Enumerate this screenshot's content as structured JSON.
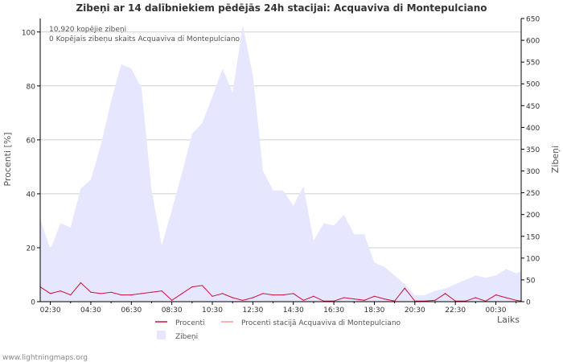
{
  "chart_data": {
    "type": "area",
    "title": "Zibeņi ar 14 dalībniekiem pēdējās 24h stacijai: Acquaviva di Montepulciano",
    "annotations": [
      "10,920 kopējie zibeņi",
      "0 Kopējais zibeņu skaits Acquaviva di Montepulciano"
    ],
    "ylabel_left": "Procenti   [%]",
    "ylabel_right": "Zibeņi",
    "xlabel": "Laiks",
    "y_left_range": [
      0,
      105
    ],
    "y_right_range": [
      0,
      650
    ],
    "y_left_ticks": [
      0,
      20,
      40,
      60,
      80,
      100
    ],
    "y_right_ticks": [
      0,
      50,
      100,
      150,
      200,
      250,
      300,
      350,
      400,
      450,
      500,
      550,
      600,
      650
    ],
    "x_start_hour": 2.0,
    "x_end_hour": 25.75,
    "x_ticks": [
      "02:30",
      "04:30",
      "06:30",
      "08:30",
      "10:30",
      "12:30",
      "14:30",
      "16:30",
      "18:30",
      "20:30",
      "22:30",
      "00:30"
    ],
    "x_tick_hours": [
      2.5,
      4.5,
      6.5,
      8.5,
      10.5,
      12.5,
      14.5,
      16.5,
      18.5,
      20.5,
      22.5,
      24.5
    ],
    "series": [
      {
        "name": "Zibeņi",
        "color": "#e6e6ff",
        "axis": "right",
        "hours": [
          2.0,
          2.5,
          3.0,
          3.5,
          4.0,
          4.5,
          5.0,
          5.5,
          6.0,
          6.5,
          7.0,
          7.5,
          8.0,
          8.5,
          9.0,
          9.5,
          10.0,
          10.5,
          11.0,
          11.5,
          12.0,
          12.5,
          13.0,
          13.5,
          14.0,
          14.5,
          15.0,
          15.5,
          16.0,
          16.5,
          17.0,
          17.5,
          18.0,
          18.5,
          19.0,
          19.5,
          20.0,
          20.5,
          21.0,
          21.5,
          22.0,
          22.5,
          23.0,
          23.5,
          24.0,
          24.5,
          25.0,
          25.5,
          25.75
        ],
        "values": [
          190,
          120,
          180,
          170,
          260,
          280,
          360,
          460,
          545,
          535,
          490,
          255,
          130,
          210,
          295,
          385,
          410,
          470,
          535,
          480,
          635,
          520,
          300,
          255,
          255,
          220,
          265,
          140,
          180,
          175,
          200,
          155,
          155,
          90,
          80,
          60,
          40,
          15,
          15,
          25,
          30,
          40,
          50,
          60,
          55,
          60,
          75,
          65,
          70
        ]
      },
      {
        "name": "Procenti",
        "color": "#d0103a",
        "axis": "left",
        "hours": [
          2.0,
          2.5,
          3.0,
          3.5,
          4.0,
          4.5,
          5.0,
          5.5,
          6.0,
          6.5,
          7.0,
          7.5,
          8.0,
          8.5,
          9.0,
          9.5,
          10.0,
          10.5,
          11.0,
          11.5,
          12.0,
          12.5,
          13.0,
          13.5,
          14.0,
          14.5,
          15.0,
          15.5,
          16.0,
          16.5,
          17.0,
          17.5,
          18.0,
          18.5,
          19.0,
          19.5,
          20.0,
          20.5,
          21.0,
          21.5,
          22.0,
          22.5,
          23.0,
          23.5,
          24.0,
          24.5,
          25.0,
          25.5,
          25.75
        ],
        "values": [
          5.5,
          3.0,
          4.0,
          2.5,
          7.0,
          3.5,
          3.0,
          3.5,
          2.5,
          2.5,
          3.0,
          3.5,
          4.0,
          0.5,
          3.0,
          5.5,
          6.0,
          2.0,
          3.0,
          1.5,
          0.5,
          1.5,
          3.0,
          2.5,
          2.5,
          3.0,
          0.5,
          2.0,
          0.2,
          0.2,
          1.5,
          1.0,
          0.5,
          2.0,
          1.0,
          0.2,
          5.0,
          0.2,
          0.2,
          0.5,
          3.0,
          0.2,
          0.2,
          1.5,
          0.2,
          2.5,
          1.5,
          0.5,
          0.2
        ]
      },
      {
        "name": "Procenti stacijā Acquaviva di Montepulciano",
        "color": "#ff9999",
        "axis": "left",
        "hours": [
          2.0,
          25.75
        ],
        "values": [
          0,
          0
        ]
      }
    ],
    "legend": {
      "items": [
        "Procenti",
        "Procenti stacijā Acquaviva di Montepulciano",
        "Zibeņi"
      ],
      "placement": "bottom-center"
    }
  },
  "footer": {
    "watermark": "www.lightningmaps.org"
  }
}
